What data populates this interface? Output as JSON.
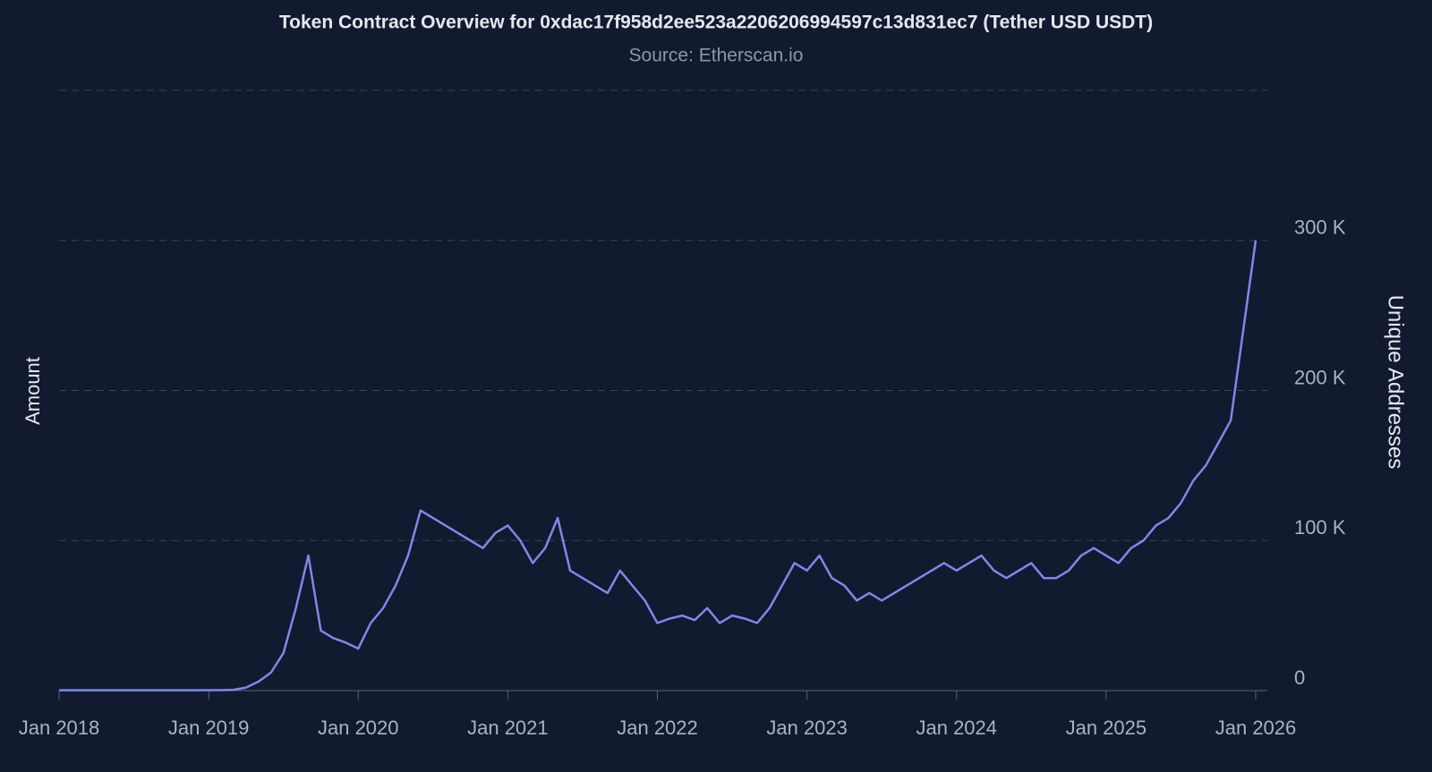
{
  "chart_data": {
    "type": "line",
    "title": "Token Contract Overview for 0xdac17f958d2ee523a2206206994597c13d831ec7 (Tether USD USDT)",
    "subtitle": "Source: Etherscan.io",
    "y_axis_label_left": "Amount",
    "y_axis_label_right": "Unique Addresses",
    "color": "#8187e8",
    "grid": true,
    "x": [
      "2018-01",
      "2018-02",
      "2018-03",
      "2018-04",
      "2018-05",
      "2018-06",
      "2018-07",
      "2018-08",
      "2018-09",
      "2018-10",
      "2018-11",
      "2018-12",
      "2019-01",
      "2019-02",
      "2019-03",
      "2019-04",
      "2019-05",
      "2019-06",
      "2019-07",
      "2019-08",
      "2019-09",
      "2019-10",
      "2019-11",
      "2019-12",
      "2020-01",
      "2020-02",
      "2020-03",
      "2020-04",
      "2020-05",
      "2020-06",
      "2020-07",
      "2020-08",
      "2020-09",
      "2020-10",
      "2020-11",
      "2020-12",
      "2021-01",
      "2021-02",
      "2021-03",
      "2021-04",
      "2021-05",
      "2021-06",
      "2021-07",
      "2021-08",
      "2021-09",
      "2021-10",
      "2021-11",
      "2021-12",
      "2022-01",
      "2022-02",
      "2022-03",
      "2022-04",
      "2022-05",
      "2022-06",
      "2022-07",
      "2022-08",
      "2022-09",
      "2022-10",
      "2022-11",
      "2022-12",
      "2023-01",
      "2023-02",
      "2023-03",
      "2023-04",
      "2023-05",
      "2023-06",
      "2023-07",
      "2023-08",
      "2023-09",
      "2023-10",
      "2023-11",
      "2023-12",
      "2024-01",
      "2024-02",
      "2024-03",
      "2024-04",
      "2024-05",
      "2024-06",
      "2024-07",
      "2024-08",
      "2024-09",
      "2024-10",
      "2024-11",
      "2024-12",
      "2025-01",
      "2025-02",
      "2025-03",
      "2025-04",
      "2025-05",
      "2025-06",
      "2025-07",
      "2025-08",
      "2025-09",
      "2025-10",
      "2025-11",
      "2025-12",
      "2026-01"
    ],
    "values": [
      200,
      200,
      200,
      200,
      200,
      200,
      200,
      200,
      200,
      200,
      200,
      200,
      300,
      300,
      500,
      2000,
      6000,
      12000,
      25000,
      55000,
      90000,
      40000,
      35000,
      32000,
      28000,
      45000,
      55000,
      70000,
      90000,
      120000,
      115000,
      110000,
      105000,
      100000,
      95000,
      105000,
      110000,
      100000,
      85000,
      95000,
      115000,
      80000,
      75000,
      70000,
      65000,
      80000,
      70000,
      60000,
      45000,
      48000,
      50000,
      47000,
      55000,
      45000,
      50000,
      48000,
      45000,
      55000,
      70000,
      85000,
      80000,
      90000,
      75000,
      70000,
      60000,
      65000,
      60000,
      65000,
      70000,
      75000,
      80000,
      85000,
      80000,
      85000,
      90000,
      80000,
      75000,
      80000,
      85000,
      75000,
      75000,
      80000,
      90000,
      95000,
      90000,
      85000,
      95000,
      100000,
      110000,
      115000,
      125000,
      140000,
      150000,
      165000,
      180000,
      240000,
      300000
    ],
    "xlim": [
      "2018-01",
      "2026-01"
    ],
    "xticks": [
      {
        "value": "2018-01",
        "label": "Jan 2018"
      },
      {
        "value": "2019-01",
        "label": "Jan 2019"
      },
      {
        "value": "2020-01",
        "label": "Jan 2020"
      },
      {
        "value": "2021-01",
        "label": "Jan 2021"
      },
      {
        "value": "2022-01",
        "label": "Jan 2022"
      },
      {
        "value": "2023-01",
        "label": "Jan 2023"
      },
      {
        "value": "2024-01",
        "label": "Jan 2024"
      },
      {
        "value": "2025-01",
        "label": "Jan 2025"
      },
      {
        "value": "2026-01",
        "label": "Jan 2026"
      }
    ],
    "ylim": [
      0,
      400000
    ],
    "yticks": [
      {
        "value": 0,
        "label": "0"
      },
      {
        "value": 100000,
        "label": "100 K"
      },
      {
        "value": 200000,
        "label": "200 K"
      },
      {
        "value": 300000,
        "label": "300 K"
      }
    ]
  }
}
